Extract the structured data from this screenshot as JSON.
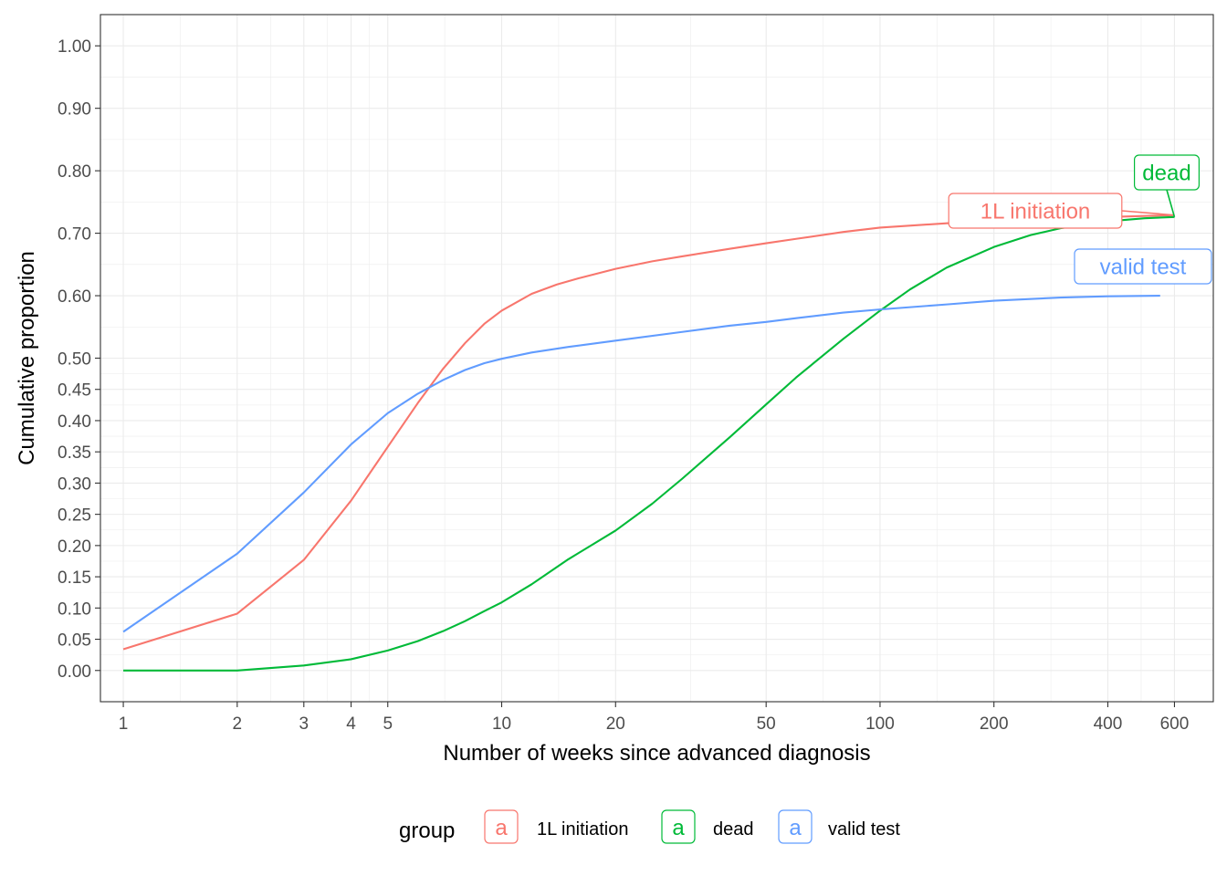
{
  "chart_data": {
    "type": "line",
    "xlabel": "Number of weeks since advanced diagnosis",
    "ylabel": "Cumulative proportion",
    "x_scale": "log",
    "xlim": [
      0.87,
      760
    ],
    "ylim": [
      -0.05,
      1.05
    ],
    "grid": true,
    "x_ticks": [
      1,
      2,
      3,
      4,
      5,
      10,
      20,
      50,
      100,
      200,
      400,
      600
    ],
    "x_tick_labels": [
      "1",
      "2",
      "3",
      "4",
      "5",
      "10",
      "20",
      "50",
      "100",
      "200",
      "400",
      "600"
    ],
    "y_ticks": [
      0,
      0.05,
      0.1,
      0.15,
      0.2,
      0.25,
      0.3,
      0.35,
      0.4,
      0.45,
      0.5,
      0.6,
      0.7,
      0.8,
      0.9,
      1.0
    ],
    "y_tick_labels": [
      "0.00",
      "0.05",
      "0.10",
      "0.15",
      "0.20",
      "0.25",
      "0.30",
      "0.35",
      "0.40",
      "0.45",
      "0.50",
      "0.60",
      "0.70",
      "0.80",
      "0.90",
      "1.00"
    ],
    "legend": {
      "title": "group",
      "position": "bottom",
      "key_glyph": "a"
    },
    "series": [
      {
        "name": "1L initiation",
        "color": "#F8766D",
        "x": [
          1,
          2,
          3,
          4,
          5,
          6,
          7,
          8,
          9,
          10,
          12,
          14,
          16,
          20,
          25,
          30,
          40,
          50,
          60,
          80,
          100,
          150,
          200,
          300,
          400,
          600
        ],
        "y": [
          0.034,
          0.091,
          0.177,
          0.272,
          0.358,
          0.428,
          0.483,
          0.524,
          0.555,
          0.576,
          0.603,
          0.618,
          0.628,
          0.643,
          0.655,
          0.663,
          0.675,
          0.684,
          0.691,
          0.702,
          0.709,
          0.716,
          0.72,
          0.724,
          0.726,
          0.729
        ]
      },
      {
        "name": "dead",
        "color": "#00BA38",
        "x": [
          1,
          2,
          3,
          4,
          5,
          6,
          7,
          8,
          9,
          10,
          12,
          15,
          20,
          25,
          30,
          40,
          50,
          60,
          80,
          100,
          120,
          150,
          200,
          250,
          300,
          400,
          500,
          600
        ],
        "y": [
          0.0,
          0.0,
          0.008,
          0.018,
          0.032,
          0.047,
          0.063,
          0.079,
          0.095,
          0.109,
          0.138,
          0.178,
          0.224,
          0.267,
          0.307,
          0.373,
          0.426,
          0.469,
          0.531,
          0.576,
          0.61,
          0.645,
          0.678,
          0.697,
          0.708,
          0.719,
          0.724,
          0.726
        ]
      },
      {
        "name": "valid test",
        "color": "#619CFF",
        "x": [
          1,
          2,
          3,
          4,
          5,
          6,
          7,
          8,
          9,
          10,
          12,
          15,
          20,
          30,
          40,
          50,
          60,
          80,
          100,
          150,
          200,
          300,
          400,
          550
        ],
        "y": [
          0.062,
          0.187,
          0.285,
          0.362,
          0.412,
          0.443,
          0.465,
          0.481,
          0.492,
          0.499,
          0.509,
          0.518,
          0.528,
          0.542,
          0.552,
          0.558,
          0.564,
          0.573,
          0.578,
          0.586,
          0.592,
          0.597,
          0.599,
          0.6
        ]
      }
    ],
    "end_labels": [
      {
        "text": "1L initiation",
        "series": "1L initiation"
      },
      {
        "text": "dead",
        "series": "dead"
      },
      {
        "text": "valid test",
        "series": "valid test"
      }
    ]
  }
}
